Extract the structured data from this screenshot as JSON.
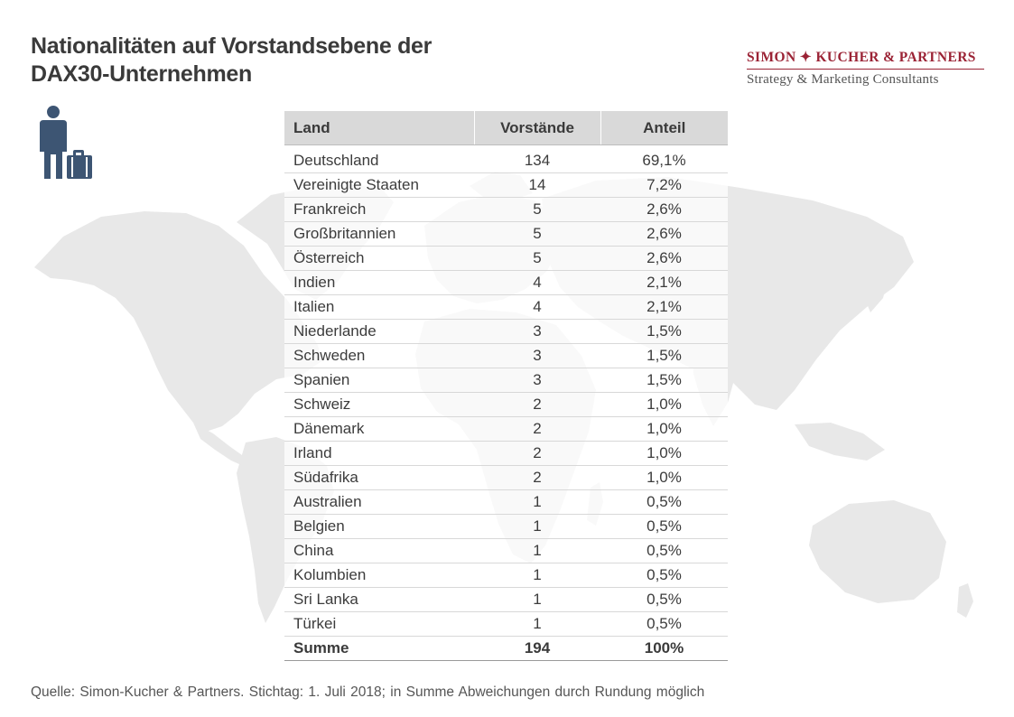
{
  "title": {
    "line1": "Nationalitäten auf Vorstandsebene der",
    "line2": "DAX30-Unternehmen"
  },
  "brand": {
    "name": "SIMON ✦ KUCHER & PARTNERS",
    "subtitle": "Strategy & Marketing Consultants",
    "color": "#9b2335"
  },
  "icon": "person-with-suitcase-icon",
  "table": {
    "headers": [
      "Land",
      "Vorstände",
      "Anteil"
    ],
    "total": {
      "label": "Summe",
      "count": "194",
      "share": "100%"
    }
  },
  "chart_data": {
    "type": "table",
    "columns": [
      "Land",
      "Vorstände",
      "Anteil"
    ],
    "rows": [
      [
        "Deutschland",
        "134",
        "69,1%"
      ],
      [
        "Vereinigte Staaten",
        "14",
        "7,2%"
      ],
      [
        "Frankreich",
        "5",
        "2,6%"
      ],
      [
        "Großbritannien",
        "5",
        "2,6%"
      ],
      [
        "Österreich",
        "5",
        "2,6%"
      ],
      [
        "Indien",
        "4",
        "2,1%"
      ],
      [
        "Italien",
        "4",
        "2,1%"
      ],
      [
        "Niederlande",
        "3",
        "1,5%"
      ],
      [
        "Schweden",
        "3",
        "1,5%"
      ],
      [
        "Spanien",
        "3",
        "1,5%"
      ],
      [
        "Schweiz",
        "2",
        "1,0%"
      ],
      [
        "Dänemark",
        "2",
        "1,0%"
      ],
      [
        "Irland",
        "2",
        "1,0%"
      ],
      [
        "Südafrika",
        "2",
        "1,0%"
      ],
      [
        "Australien",
        "1",
        "0,5%"
      ],
      [
        "Belgien",
        "1",
        "0,5%"
      ],
      [
        "China",
        "1",
        "0,5%"
      ],
      [
        "Kolumbien",
        "1",
        "0,5%"
      ],
      [
        "Sri Lanka",
        "1",
        "0,5%"
      ],
      [
        "Türkei",
        "1",
        "0,5%"
      ]
    ],
    "total": [
      "Summe",
      "194",
      "100%"
    ]
  },
  "source": "Quelle: Simon-Kucher & Partners. Stichtag: 1. Juli 2018; in Summe Abweichungen durch Rundung möglich",
  "colors": {
    "icon": "#3d5573",
    "map": "#e8e8e8",
    "header": "#d9d9d9"
  }
}
